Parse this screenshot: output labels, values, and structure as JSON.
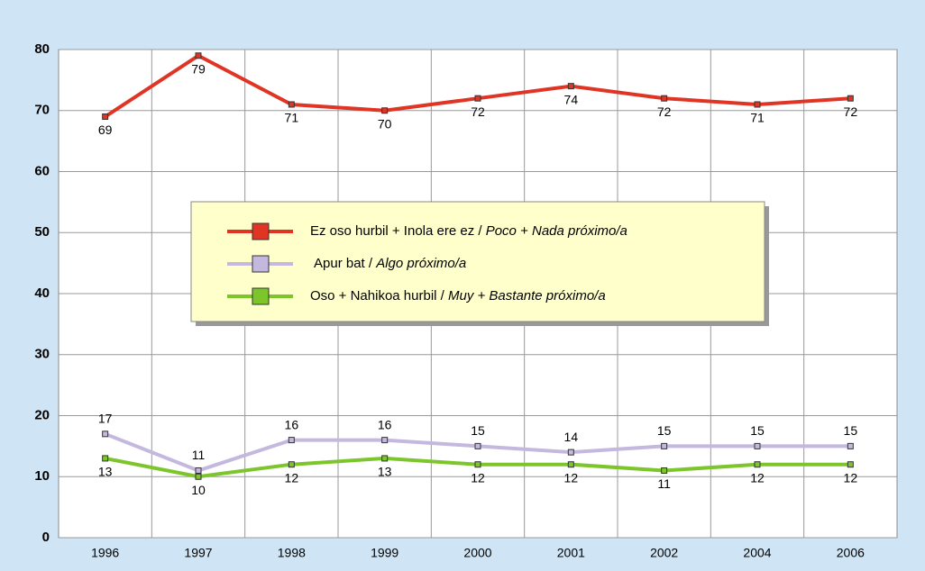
{
  "chart_data": {
    "type": "line",
    "categories": [
      "1996",
      "1997",
      "1998",
      "1999",
      "2000",
      "2001",
      "2002",
      "2004",
      "2006"
    ],
    "series": [
      {
        "name": "Ez oso hurbil + Inola ere ez / Poco + Nada próximo/a",
        "color": "#e03424",
        "values": [
          69,
          79,
          71,
          70,
          72,
          74,
          72,
          71,
          72
        ]
      },
      {
        "name": "Apur bat / Algo próximo/a",
        "color": "#c4b8de",
        "values": [
          17,
          11,
          16,
          16,
          15,
          14,
          15,
          15,
          15
        ]
      },
      {
        "name": "Oso + Nahikoa hurbil / Muy + Bastante próximo/a",
        "color": "#7cc62c",
        "values": [
          13,
          10,
          12,
          13,
          12,
          12,
          11,
          12,
          12
        ]
      }
    ],
    "ylim": [
      0,
      80
    ],
    "yticks": [
      0,
      10,
      20,
      30,
      40,
      50,
      60,
      70,
      80
    ],
    "grid": true
  }
}
